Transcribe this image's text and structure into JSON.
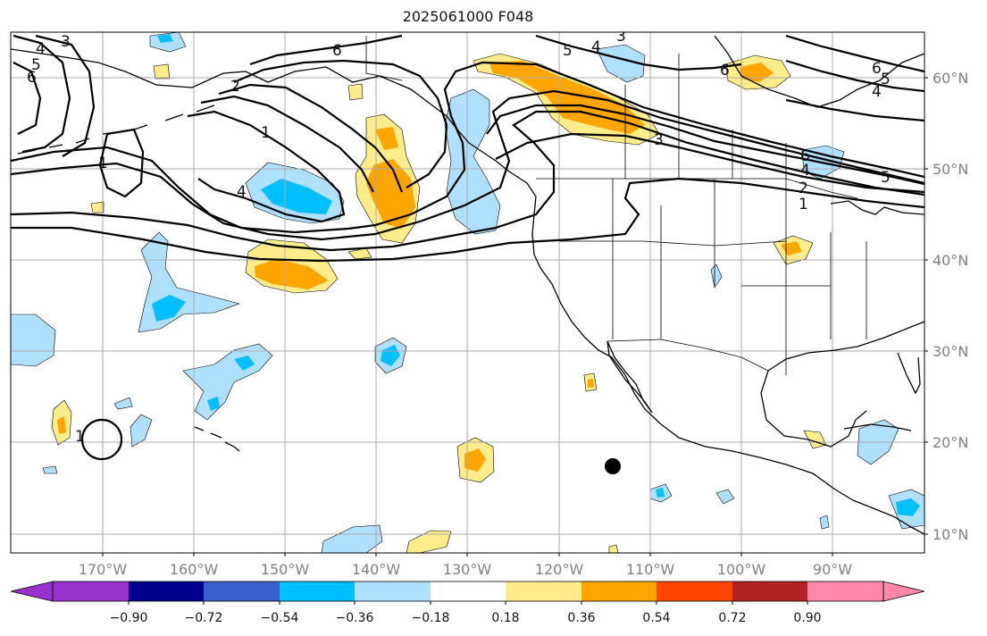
{
  "title": "2025061000 F048",
  "map": {
    "lon_labels": [
      "170°W",
      "160°W",
      "150°W",
      "140°W",
      "130°W",
      "120°W",
      "110°W",
      "100°W",
      "90°W"
    ],
    "lat_labels": [
      "60°N",
      "50°N",
      "40°N",
      "30°N",
      "20°N",
      "10°N"
    ],
    "contour_labels": [
      "1",
      "2",
      "3",
      "4",
      "5",
      "6"
    ],
    "marker": "black-dot"
  },
  "colorbar": {
    "ticks": [
      "−0.90",
      "−0.72",
      "−0.54",
      "−0.36",
      "−0.18",
      "0.18",
      "0.36",
      "0.54",
      "0.72",
      "0.90"
    ],
    "colors": [
      "#9932cc",
      "#00008b",
      "#3a5fcd",
      "#00bfff",
      "#b0e0ff",
      "#ffffff",
      "#ffec8b",
      "#ffa500",
      "#ff4500",
      "#b22222",
      "#ff88aa"
    ]
  }
}
